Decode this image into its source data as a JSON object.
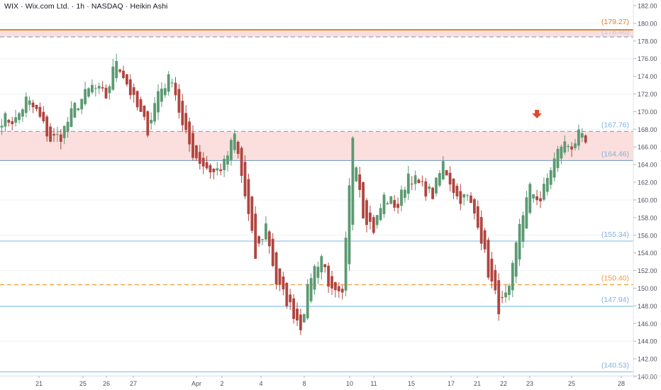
{
  "header": {
    "symbol": "WIX",
    "name": "Wix.com Ltd.",
    "interval": "1h",
    "exchange": "NASDAQ",
    "style": "Heikin Ashi",
    "separator": " · "
  },
  "colors": {
    "up": "#5b9a72",
    "down": "#b0453f",
    "resistance_zone": "#f7c5c2",
    "resistance_line": "#e8832a",
    "support_line": "#90c6ee",
    "dashed_orange": "#f29b36",
    "dashed_blue": "#7aa1c9",
    "arrow": "#e04a2c",
    "axis_text": "#50535e",
    "grid": "#f0f3fa"
  },
  "chart_data": {
    "type": "candlestick",
    "style": "Heikin Ashi",
    "ylim": [
      139.5,
      182.6
    ],
    "y_ticks": [
      "140.00",
      "142.00",
      "144.00",
      "146.00",
      "148.00",
      "150.00",
      "152.00",
      "154.00",
      "156.00",
      "158.00",
      "160.00",
      "162.00",
      "164.00",
      "166.00",
      "168.00",
      "170.00",
      "172.00",
      "174.00",
      "176.00",
      "178.00",
      "180.00",
      "182.00"
    ],
    "x_tick_labels": [
      "21",
      "25",
      "26",
      "27",
      "Apr",
      "2",
      "4",
      "8",
      "10",
      "11",
      "15",
      "17",
      "21",
      "22",
      "23",
      "25",
      "28"
    ],
    "levels": [
      {
        "label": "(179.27)",
        "value": 179.27,
        "style": "solid",
        "color": "#e8832a"
      },
      {
        "label": "(178.46)",
        "value": 178.46,
        "style": "dashed",
        "color": "#7aa1c9"
      },
      {
        "label": "(167.76)",
        "value": 167.76,
        "style": "dashed",
        "color": "#7aa1c9"
      },
      {
        "label": "(164.46)",
        "value": 164.46,
        "style": "solid",
        "color": "#7aa1c9"
      },
      {
        "label": "(155.34)",
        "value": 155.34,
        "style": "solid",
        "color": "#90c6ee"
      },
      {
        "label": "(150.40)",
        "value": 150.4,
        "style": "dashed",
        "color": "#f29b36"
      },
      {
        "label": "(147.94)",
        "value": 147.94,
        "style": "solid",
        "color": "#90c6ee"
      },
      {
        "label": "(140.53)",
        "value": 140.53,
        "style": "solid",
        "color": "#90c6ee"
      }
    ],
    "zones": [
      {
        "from": 178.46,
        "to": 179.27
      },
      {
        "from": 164.46,
        "to": 167.76
      }
    ],
    "marker": {
      "type": "down-arrow",
      "bar_index": 154,
      "price": 169.4
    },
    "price_path": [
      [
        0,
        169.2
      ],
      [
        4,
        169.0
      ],
      [
        7,
        171.3
      ],
      [
        10,
        170.0
      ],
      [
        14,
        166.8
      ],
      [
        17,
        167.3
      ],
      [
        21,
        170.5
      ],
      [
        26,
        172.8
      ],
      [
        30,
        171.7
      ],
      [
        33,
        176.0
      ],
      [
        36,
        173.2
      ],
      [
        38,
        171.2
      ],
      [
        42,
        168.0
      ],
      [
        45,
        172.3
      ],
      [
        49,
        174.0
      ],
      [
        52,
        168.2
      ],
      [
        55,
        165.3
      ],
      [
        58,
        164.0
      ],
      [
        61,
        163.1
      ],
      [
        64,
        164.0
      ],
      [
        67,
        167.3
      ],
      [
        70,
        160.4
      ],
      [
        73,
        153.5
      ],
      [
        76,
        157.2
      ],
      [
        79,
        150.6
      ],
      [
        82,
        148.6
      ],
      [
        86,
        145.8
      ],
      [
        89,
        151.6
      ],
      [
        92,
        153.7
      ],
      [
        95,
        149.3
      ],
      [
        98,
        148.9
      ],
      [
        101,
        167.4
      ],
      [
        104,
        158.6
      ],
      [
        107,
        156.7
      ],
      [
        110,
        160.3
      ],
      [
        114,
        159.3
      ],
      [
        117,
        163.0
      ],
      [
        120,
        161.7
      ],
      [
        124,
        160.6
      ],
      [
        127,
        164.1
      ],
      [
        131,
        160.3
      ],
      [
        134,
        160.2
      ],
      [
        137,
        157.6
      ],
      [
        140,
        151.8
      ],
      [
        143,
        147.8
      ],
      [
        146,
        149.5
      ],
      [
        149,
        157.4
      ],
      [
        152,
        161.2
      ],
      [
        155,
        160.0
      ],
      [
        158,
        163.6
      ],
      [
        161,
        166.3
      ],
      [
        164,
        166.2
      ],
      [
        166,
        167.2
      ],
      [
        168,
        166.3
      ]
    ]
  }
}
